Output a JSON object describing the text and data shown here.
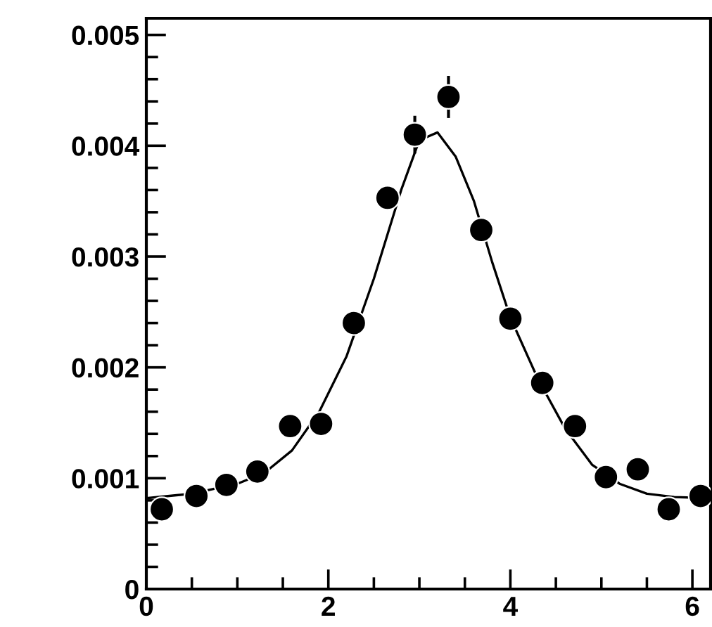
{
  "chart_data": {
    "type": "scatter",
    "series": [
      {
        "color": "#000000",
        "marker": "circle",
        "x": [
          0.17,
          0.55,
          0.88,
          1.22,
          1.58,
          1.92,
          2.28,
          2.65,
          2.95,
          3.32,
          3.68,
          4.0,
          4.35,
          4.71,
          5.05,
          5.4,
          5.74,
          6.09
        ],
        "values": [
          0.00072,
          0.00084,
          0.00094,
          0.00106,
          0.00147,
          0.00149,
          0.0024,
          0.00353,
          0.0041,
          0.00444,
          0.00324,
          0.00244,
          0.00186,
          0.00147,
          0.00101,
          0.00108,
          0.00072,
          0.00084
        ],
        "errors": [
          null,
          null,
          null,
          null,
          null,
          null,
          null,
          null,
          0.00017,
          0.00019,
          null,
          null,
          null,
          null,
          null,
          null,
          null,
          null
        ]
      },
      {
        "type": "line",
        "color": "#000000",
        "marker": "none",
        "line_style": "solid",
        "x": [
          0,
          0.5,
          1.0,
          1.3,
          1.6,
          1.9,
          2.2,
          2.5,
          2.8,
          3.0,
          3.2,
          3.4,
          3.6,
          3.8,
          4.0,
          4.3,
          4.6,
          4.9,
          5.2,
          5.5,
          5.8,
          6.2
        ],
        "values": [
          0.00082,
          0.00086,
          0.00095,
          0.00105,
          0.00125,
          0.0016,
          0.0021,
          0.0028,
          0.0036,
          0.00405,
          0.00412,
          0.0039,
          0.0035,
          0.00295,
          0.00245,
          0.0019,
          0.00145,
          0.00112,
          0.00095,
          0.00086,
          0.00083,
          0.00082
        ]
      }
    ],
    "xlim": [
      0,
      6.2
    ],
    "ylim": [
      0,
      0.00515
    ],
    "xticks": [
      0,
      {
        "value": 0.5,
        "label": null
      },
      {
        "value": 1,
        "label": null
      },
      {
        "value": 1.5,
        "label": null
      },
      2,
      {
        "value": 2.5,
        "label": null
      },
      {
        "value": 3,
        "label": null
      },
      {
        "value": 3.5,
        "label": null
      },
      4,
      {
        "value": 4.5,
        "label": null
      },
      {
        "value": 5,
        "label": null
      },
      {
        "value": 5.5,
        "label": null
      },
      6
    ],
    "yticks": [
      0,
      {
        "value": 0.0002,
        "label": null
      },
      {
        "value": 0.0004,
        "label": null
      },
      {
        "value": 0.0006,
        "label": null
      },
      {
        "value": 0.0008,
        "label": null
      },
      0.001,
      {
        "value": 0.0012,
        "label": null
      },
      {
        "value": 0.0014,
        "label": null
      },
      {
        "value": 0.0016,
        "label": null
      },
      {
        "value": 0.0018,
        "label": null
      },
      0.002,
      {
        "value": 0.0022,
        "label": null
      },
      {
        "value": 0.0024,
        "label": null
      },
      {
        "value": 0.0026,
        "label": null
      },
      {
        "value": 0.0028,
        "label": null
      },
      0.003,
      {
        "value": 0.0032,
        "label": null
      },
      {
        "value": 0.0034,
        "label": null
      },
      {
        "value": 0.0036,
        "label": null
      },
      {
        "value": 0.0038,
        "label": null
      },
      0.004,
      {
        "value": 0.0042,
        "label": null
      },
      {
        "value": 0.0044,
        "label": null
      },
      {
        "value": 0.0046,
        "label": null
      },
      {
        "value": 0.0048,
        "label": null
      },
      0.005
    ],
    "grid": false,
    "legend": false
  }
}
